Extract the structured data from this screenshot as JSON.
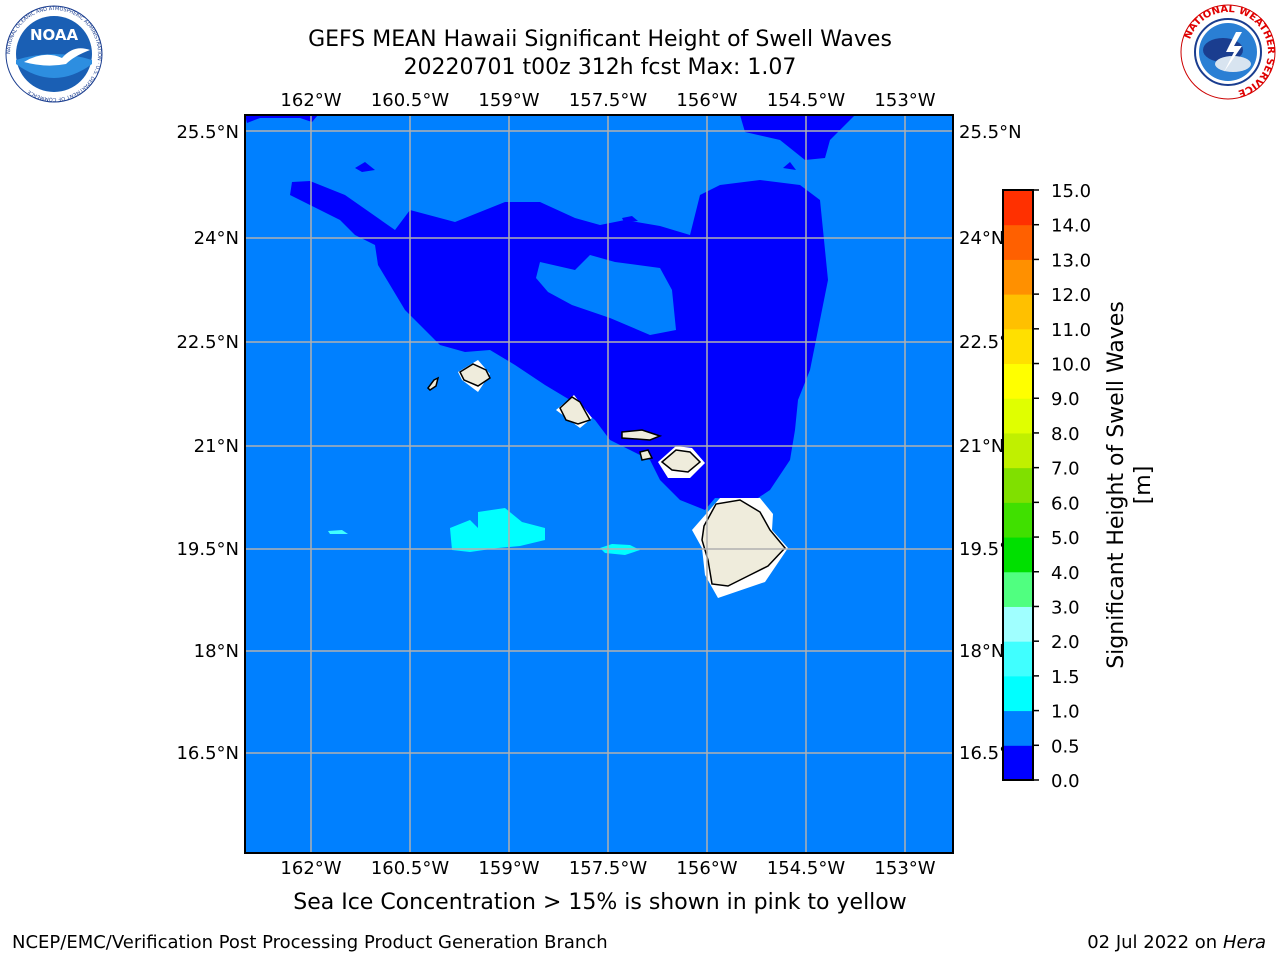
{
  "header": {
    "title_line1": "GEFS MEAN Hawaii Significant Height of Swell Waves",
    "title_line2": "20220701 t00z 312h fcst   Max: 1.07"
  },
  "logos": {
    "left": {
      "name": "noaa-logo",
      "text": "NOAA",
      "ring_text": "NATIONAL OCEANIC AND ATMOSPHERIC ADMINISTRATION · U.S. DEPARTMENT OF COMMERCE"
    },
    "right": {
      "name": "nws-logo",
      "ring_text": "NATIONAL WEATHER SERVICE"
    }
  },
  "map": {
    "lon_ticks": [
      "162°W",
      "160.5°W",
      "159°W",
      "157.5°W",
      "156°W",
      "154.5°W",
      "153°W"
    ],
    "lat_ticks": [
      "25.5°N",
      "24°N",
      "22.5°N",
      "21°N",
      "19.5°N",
      "18°N",
      "16.5°N"
    ],
    "colors": {
      "ocean_05_10": "#0080ff",
      "ocean_00_05": "#0000ff",
      "ocean_10_15": "#00ffff",
      "land": "#efecdc",
      "grid": "#b0b0b0"
    }
  },
  "colorbar": {
    "label": "Significant Height of Swell Waves [m]",
    "levels": [
      "0.0",
      "0.5",
      "1.0",
      "1.5",
      "2.0",
      "3.0",
      "4.0",
      "5.0",
      "6.0",
      "7.0",
      "8.0",
      "9.0",
      "10.0",
      "11.0",
      "12.0",
      "13.0",
      "14.0",
      "15.0"
    ],
    "colors": [
      "#0000ff",
      "#0080ff",
      "#00ffff",
      "#40ffff",
      "#a0ffff",
      "#50ff80",
      "#00e000",
      "#40e000",
      "#80e000",
      "#c0f000",
      "#e0ff00",
      "#ffff00",
      "#ffe000",
      "#ffc000",
      "#ff9000",
      "#ff6000",
      "#ff3000"
    ]
  },
  "note": "Sea Ice Concentration > 15% is shown in pink to yellow",
  "footer": {
    "left": "NCEP/EMC/Verification Post Processing Product Generation Branch",
    "right_date": "02 Jul 2022 on ",
    "right_machine": "Hera"
  }
}
